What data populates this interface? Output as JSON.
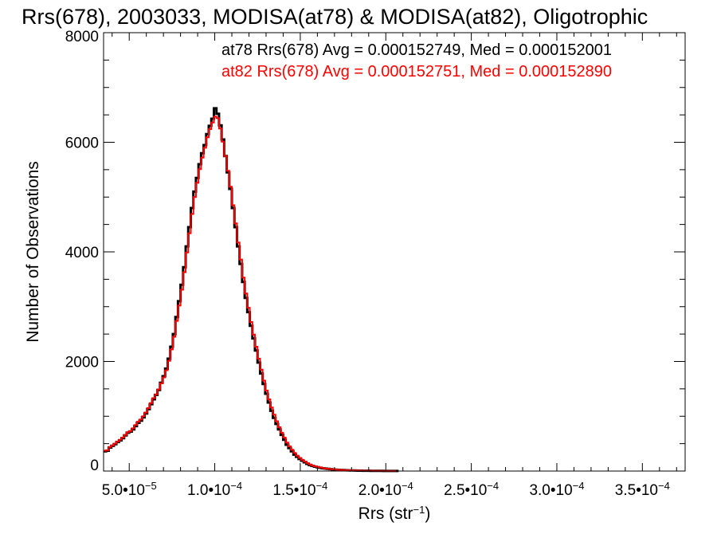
{
  "chart_data": {
    "type": "histogram",
    "title": "Rrs(678), 2003033, MODISA(at78) & MODISA(at82), Oligotrophic",
    "xlabel": {
      "base": "Rrs (str",
      "sup": "−1",
      "close": ")"
    },
    "ylabel": "Number of Observations",
    "xlim": [
      3.5e-05,
      0.000375
    ],
    "ylim": [
      0,
      8000
    ],
    "grid": false,
    "x_ticks": [
      {
        "value": 5e-05,
        "mantissa": "5.0•10",
        "exp": "−5"
      },
      {
        "value": 0.0001,
        "mantissa": "1.0•10",
        "exp": "−4"
      },
      {
        "value": 0.00015,
        "mantissa": "1.5•10",
        "exp": "−4"
      },
      {
        "value": 0.0002,
        "mantissa": "2.0•10",
        "exp": "−4"
      },
      {
        "value": 0.00025,
        "mantissa": "2.5•10",
        "exp": "−4"
      },
      {
        "value": 0.0003,
        "mantissa": "3.0•10",
        "exp": "−4"
      },
      {
        "value": 0.00035,
        "mantissa": "3.5•10",
        "exp": "−4"
      }
    ],
    "y_ticks": [
      {
        "value": 0,
        "label": "0"
      },
      {
        "value": 2000,
        "label": "2000"
      },
      {
        "value": 4000,
        "label": "4000"
      },
      {
        "value": 6000,
        "label": "6000"
      },
      {
        "value": 8000,
        "label": "8000"
      }
    ],
    "series": [
      {
        "name": "at78",
        "color": "#000000",
        "legend": "at78 Rrs(678) Avg = 0.000152749, Med = 0.000152001",
        "x_start": 3.5e-05,
        "bin_width": 1.5e-06,
        "counts": [
          360,
          370,
          430,
          460,
          490,
          530,
          560,
          600,
          650,
          700,
          720,
          760,
          820,
          880,
          920,
          980,
          1050,
          1130,
          1220,
          1310,
          1390,
          1480,
          1610,
          1730,
          1870,
          2050,
          2270,
          2500,
          2810,
          3100,
          3400,
          3720,
          4100,
          4450,
          4800,
          5100,
          5350,
          5600,
          5800,
          5950,
          6150,
          6300,
          6430,
          6620,
          6520,
          6310,
          6050,
          5750,
          5450,
          5150,
          4800,
          4450,
          4100,
          3780,
          3450,
          3160,
          2900,
          2650,
          2420,
          2200,
          1980,
          1780,
          1590,
          1410,
          1250,
          1100,
          970,
          860,
          760,
          660,
          570,
          480,
          420,
          360,
          300,
          260,
          220,
          190,
          160,
          130,
          110,
          95,
          80,
          70,
          60,
          50,
          45,
          40,
          35,
          30,
          25,
          22,
          20,
          18,
          15,
          13,
          11,
          10,
          9,
          8,
          7,
          6,
          5,
          5,
          4,
          4,
          3,
          3,
          3,
          2,
          2,
          2,
          2,
          2,
          2
        ]
      },
      {
        "name": "at82",
        "color": "#ff0000",
        "legend": "at82 Rrs(678) Avg = 0.000152751, Med = 0.000152890",
        "x_start": 3.5e-05,
        "bin_width": 1.5e-06,
        "counts": [
          370,
          380,
          440,
          470,
          500,
          540,
          570,
          610,
          660,
          710,
          730,
          780,
          840,
          900,
          940,
          1000,
          1070,
          1150,
          1240,
          1330,
          1400,
          1490,
          1600,
          1710,
          1840,
          2010,
          2220,
          2450,
          2740,
          3020,
          3310,
          3630,
          3990,
          4340,
          4690,
          5000,
          5260,
          5510,
          5720,
          5900,
          6090,
          6240,
          6360,
          6470,
          6440,
          6250,
          6010,
          5750,
          5480,
          5190,
          4850,
          4520,
          4170,
          3860,
          3530,
          3240,
          2980,
          2720,
          2490,
          2270,
          2050,
          1850,
          1650,
          1470,
          1310,
          1160,
          1030,
          910,
          800,
          700,
          610,
          520,
          450,
          390,
          330,
          280,
          240,
          205,
          175,
          145,
          120,
          100,
          88,
          75,
          65,
          55,
          48,
          42,
          37,
          32,
          27,
          24,
          21,
          19,
          16,
          14,
          12,
          11,
          10,
          9,
          8,
          7,
          6,
          5,
          5,
          4,
          4,
          3,
          3,
          3,
          2,
          2,
          2,
          2
        ]
      }
    ]
  }
}
